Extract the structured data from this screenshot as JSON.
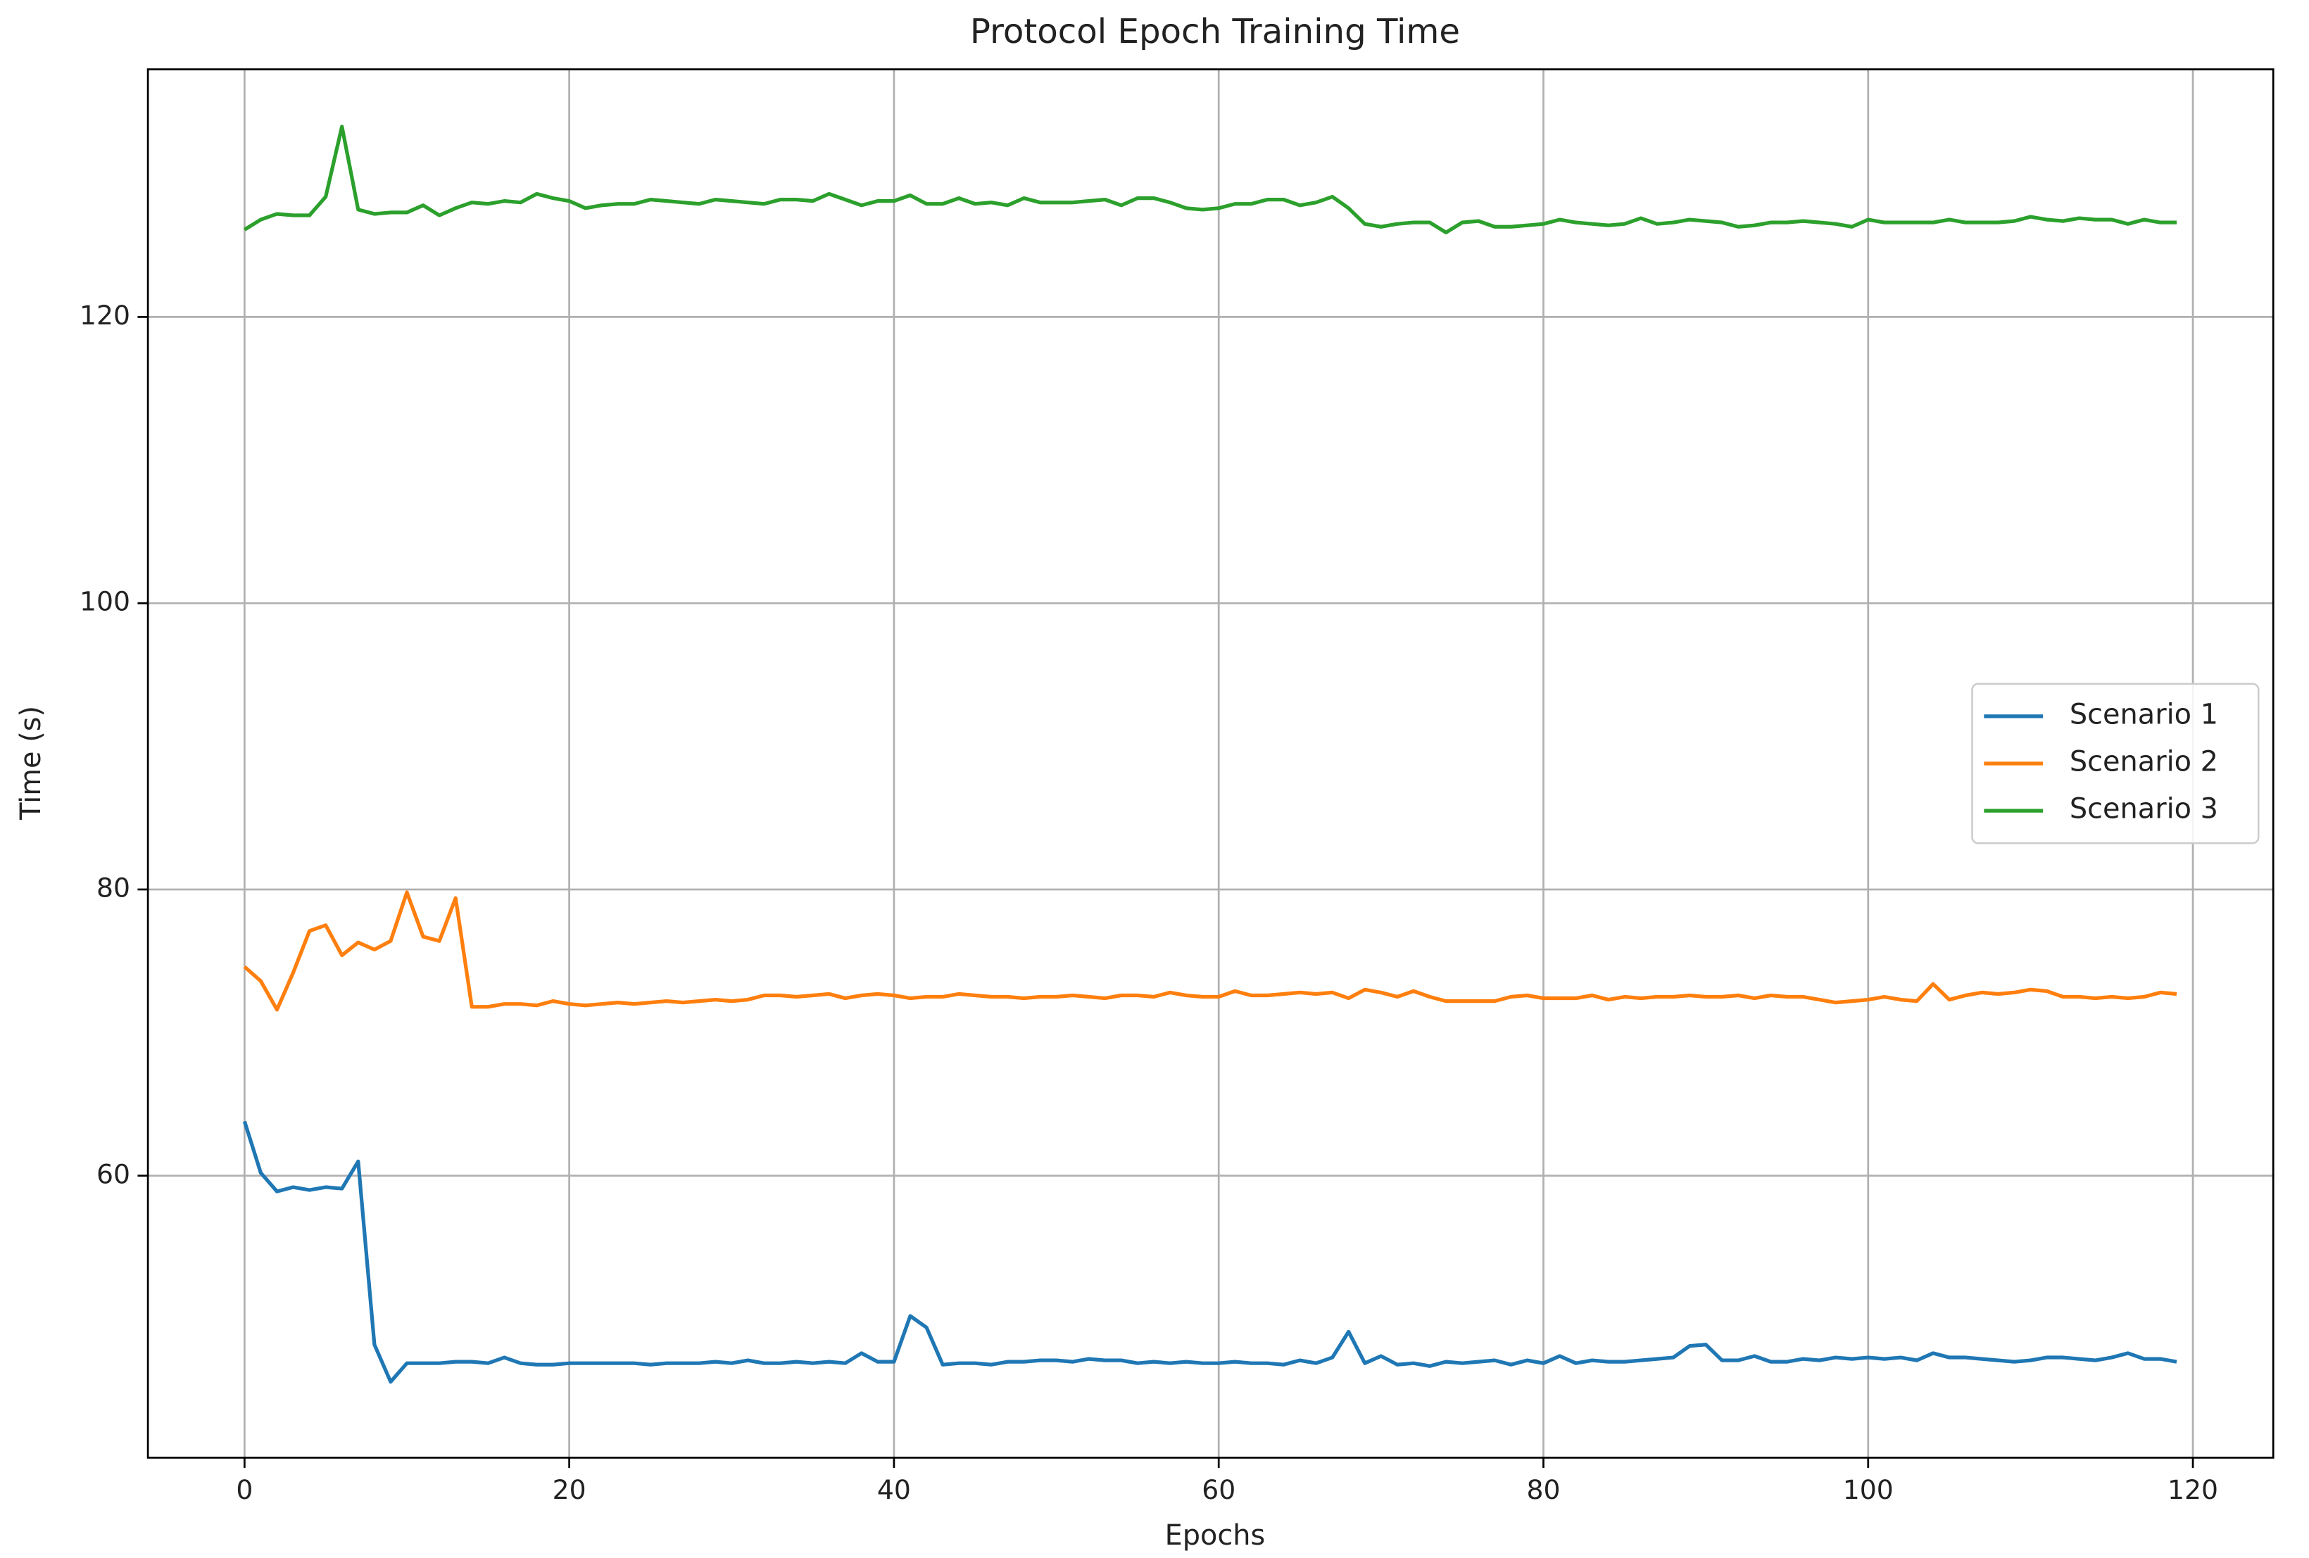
{
  "chart_data": {
    "type": "line",
    "title": "Protocol Epoch Training Time",
    "x_label": "Epochs",
    "y_label": "Time (s)",
    "x": [
      0,
      1,
      2,
      3,
      4,
      5,
      6,
      7,
      8,
      9,
      10,
      11,
      12,
      13,
      14,
      15,
      16,
      17,
      18,
      19,
      20,
      21,
      22,
      23,
      24,
      25,
      26,
      27,
      28,
      29,
      30,
      31,
      32,
      33,
      34,
      35,
      36,
      37,
      38,
      39,
      40,
      41,
      42,
      43,
      44,
      45,
      46,
      47,
      48,
      49,
      50,
      51,
      52,
      53,
      54,
      55,
      56,
      57,
      58,
      59,
      60,
      61,
      62,
      63,
      64,
      65,
      66,
      67,
      68,
      69,
      70,
      71,
      72,
      73,
      74,
      75,
      76,
      77,
      78,
      79,
      80,
      81,
      82,
      83,
      84,
      85,
      86,
      87,
      88,
      89,
      90,
      91,
      92,
      93,
      94,
      95,
      96,
      97,
      98,
      99,
      100,
      101,
      102,
      103,
      104,
      105,
      106,
      107,
      108,
      109,
      110,
      111,
      112,
      113,
      114,
      115,
      116,
      117,
      118,
      119
    ],
    "series": [
      {
        "name": "Scenario 1",
        "color": "#1f77b4",
        "values": [
          63.8,
          60.2,
          58.9,
          59.2,
          59.0,
          59.2,
          59.1,
          61.0,
          48.2,
          45.6,
          46.9,
          46.9,
          46.9,
          47.0,
          47.0,
          46.9,
          47.3,
          46.9,
          46.8,
          46.8,
          46.9,
          46.9,
          46.9,
          46.9,
          46.9,
          46.8,
          46.9,
          46.9,
          46.9,
          47.0,
          46.9,
          47.1,
          46.9,
          46.9,
          47.0,
          46.9,
          47.0,
          46.9,
          47.6,
          47.0,
          47.0,
          50.2,
          49.4,
          46.8,
          46.9,
          46.9,
          46.8,
          47.0,
          47.0,
          47.1,
          47.1,
          47.0,
          47.2,
          47.1,
          47.1,
          46.9,
          47.0,
          46.9,
          47.0,
          46.9,
          46.9,
          47.0,
          46.9,
          46.9,
          46.8,
          47.1,
          46.9,
          47.3,
          49.1,
          46.9,
          47.4,
          46.8,
          46.9,
          46.7,
          47.0,
          46.9,
          47.0,
          47.1,
          46.8,
          47.1,
          46.9,
          47.4,
          46.9,
          47.1,
          47.0,
          47.0,
          47.1,
          47.2,
          47.3,
          48.1,
          48.2,
          47.1,
          47.1,
          47.4,
          47.0,
          47.0,
          47.2,
          47.1,
          47.3,
          47.2,
          47.3,
          47.2,
          47.3,
          47.1,
          47.6,
          47.3,
          47.3,
          47.2,
          47.1,
          47.0,
          47.1,
          47.3,
          47.3,
          47.2,
          47.1,
          47.3,
          47.6,
          47.2,
          47.2,
          47.0
        ]
      },
      {
        "name": "Scenario 2",
        "color": "#ff7f0e",
        "values": [
          74.6,
          73.6,
          71.6,
          74.2,
          77.1,
          77.5,
          75.4,
          76.3,
          75.8,
          76.4,
          79.8,
          76.7,
          76.4,
          79.4,
          71.8,
          71.8,
          72.0,
          72.0,
          71.9,
          72.2,
          72.0,
          71.9,
          72.0,
          72.1,
          72.0,
          72.1,
          72.2,
          72.1,
          72.2,
          72.3,
          72.2,
          72.3,
          72.6,
          72.6,
          72.5,
          72.6,
          72.7,
          72.4,
          72.6,
          72.7,
          72.6,
          72.4,
          72.5,
          72.5,
          72.7,
          72.6,
          72.5,
          72.5,
          72.4,
          72.5,
          72.5,
          72.6,
          72.5,
          72.4,
          72.6,
          72.6,
          72.5,
          72.8,
          72.6,
          72.5,
          72.5,
          72.9,
          72.6,
          72.6,
          72.7,
          72.8,
          72.7,
          72.8,
          72.4,
          73.0,
          72.8,
          72.5,
          72.9,
          72.5,
          72.2,
          72.2,
          72.2,
          72.2,
          72.5,
          72.6,
          72.4,
          72.4,
          72.4,
          72.6,
          72.3,
          72.5,
          72.4,
          72.5,
          72.5,
          72.6,
          72.5,
          72.5,
          72.6,
          72.4,
          72.6,
          72.5,
          72.5,
          72.3,
          72.1,
          72.2,
          72.3,
          72.5,
          72.3,
          72.2,
          73.4,
          72.3,
          72.6,
          72.8,
          72.7,
          72.8,
          73.0,
          72.9,
          72.5,
          72.5,
          72.4,
          72.5,
          72.4,
          72.5,
          72.8,
          72.7
        ]
      },
      {
        "name": "Scenario 3",
        "color": "#2ca02c",
        "values": [
          126.1,
          126.8,
          127.2,
          127.1,
          127.1,
          128.4,
          133.3,
          127.5,
          127.2,
          127.3,
          127.3,
          127.8,
          127.1,
          127.6,
          128.0,
          127.9,
          128.1,
          128.0,
          128.6,
          128.3,
          128.1,
          127.6,
          127.8,
          127.9,
          127.9,
          128.2,
          128.1,
          128.0,
          127.9,
          128.2,
          128.1,
          128.0,
          127.9,
          128.2,
          128.2,
          128.1,
          128.6,
          128.2,
          127.8,
          128.1,
          128.1,
          128.5,
          127.9,
          127.9,
          128.3,
          127.9,
          128.0,
          127.8,
          128.3,
          128.0,
          128.0,
          128.0,
          128.1,
          128.2,
          127.8,
          128.3,
          128.3,
          128.0,
          127.6,
          127.5,
          127.6,
          127.9,
          127.9,
          128.2,
          128.2,
          127.8,
          128.0,
          128.4,
          127.6,
          126.5,
          126.3,
          126.5,
          126.6,
          126.6,
          125.9,
          126.6,
          126.7,
          126.3,
          126.3,
          126.4,
          126.5,
          126.8,
          126.6,
          126.5,
          126.4,
          126.5,
          126.9,
          126.5,
          126.6,
          126.8,
          126.7,
          126.6,
          126.3,
          126.4,
          126.6,
          126.6,
          126.7,
          126.6,
          126.5,
          126.3,
          126.8,
          126.6,
          126.6,
          126.6,
          126.6,
          126.8,
          126.6,
          126.6,
          126.6,
          126.7,
          127.0,
          126.8,
          126.7,
          126.9,
          126.8,
          126.8,
          126.5,
          126.8,
          126.6,
          126.6
        ]
      }
    ],
    "xlim": [
      -5.95,
      124.95
    ],
    "xticks": [
      0,
      20,
      40,
      60,
      80,
      100,
      120
    ],
    "ylim": [
      40.3,
      137.3
    ],
    "yticks": [
      60,
      80,
      100,
      120
    ],
    "grid": true,
    "legend": "center right"
  }
}
